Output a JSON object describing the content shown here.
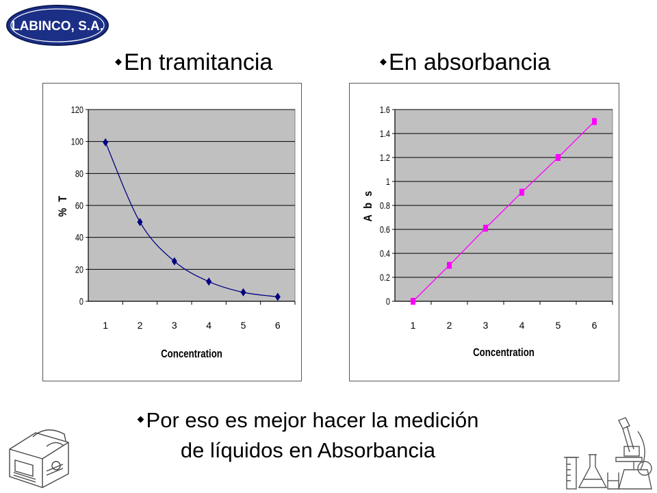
{
  "logo": {
    "text": "LABINCO, S.A."
  },
  "headings": {
    "left": "En tramitancia",
    "right": "En absorbancia"
  },
  "footer": {
    "line1": "Por eso es mejor hacer la medición",
    "line2": "de líquidos en Absorbancia"
  },
  "icons": {
    "bullet": "diamond-bullet-icon",
    "instrument": "spectrophotometer-icon",
    "labware": "lab-equipment-icon"
  },
  "chart_data": [
    {
      "type": "line",
      "xlabel": "Concentration",
      "ylabel": "% T",
      "categories": [
        "1",
        "2",
        "3",
        "4",
        "5",
        "6"
      ],
      "series": [
        {
          "values": [
            99.5,
            49.6,
            25.0,
            12.3,
            5.6,
            2.8
          ]
        }
      ],
      "ylim": [
        0,
        120
      ],
      "yticks": [
        "0",
        "20",
        "40",
        "60",
        "80",
        "100",
        "120"
      ],
      "grid": true,
      "plot_background": "#c0c0c0",
      "series_color": "#000080",
      "marker": "diamond"
    },
    {
      "type": "line",
      "xlabel": "Concentration",
      "ylabel": "A b s",
      "categories": [
        "1",
        "2",
        "3",
        "4",
        "5",
        "6"
      ],
      "series": [
        {
          "values": [
            0,
            0.3,
            0.61,
            0.91,
            1.2,
            1.5
          ]
        }
      ],
      "ylim": [
        0,
        1.6
      ],
      "yticks": [
        "0",
        "0.2",
        "0.4",
        "0.6",
        "0.8",
        "1",
        "1.2",
        "1.4",
        "1.6"
      ],
      "grid": true,
      "plot_background": "#c0c0c0",
      "series_color": "#ff00ff",
      "marker": "square"
    }
  ]
}
